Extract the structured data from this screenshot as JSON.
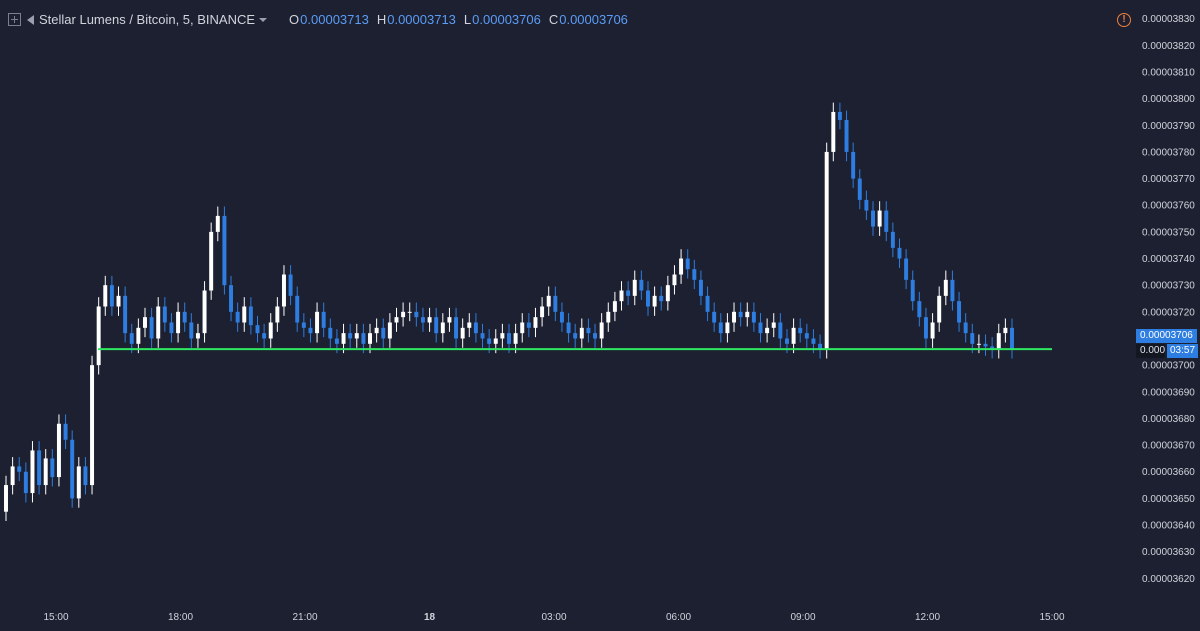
{
  "header": {
    "symbol_title": "Stellar Lumens / Bitcoin, 5, BINANCE",
    "ohlc": [
      {
        "key": "O",
        "value": "0.00003713"
      },
      {
        "key": "H",
        "value": "0.00003713"
      },
      {
        "key": "L",
        "value": "0.00003706"
      },
      {
        "key": "C",
        "value": "0.00003706"
      }
    ],
    "icons": [
      "chart-properties-icon",
      "flag-icon",
      "dropdown-caret-icon",
      "alert-icon"
    ]
  },
  "price_axis": {
    "last_price_label": "0.00003706",
    "countdown_prefix": "0.000",
    "countdown": "03:57"
  },
  "colors": {
    "background": "#1c2030",
    "up_candle": "#ffffff",
    "down_candle": "#2e7de0",
    "support_line": "#2ee860",
    "axis_text": "#d1d4dc",
    "alert": "#f0803c"
  },
  "chart_data": {
    "type": "candlestick",
    "title": "Stellar Lumens / Bitcoin, 5, BINANCE",
    "interval": "5",
    "x_ticks": [
      "15:00",
      "18:00",
      "21:00",
      "18",
      "03:00",
      "06:00",
      "09:00",
      "12:00",
      "15:00"
    ],
    "y_ticks": [
      "0.00003620",
      "0.00003630",
      "0.00003640",
      "0.00003650",
      "0.00003660",
      "0.00003670",
      "0.00003680",
      "0.00003690",
      "0.00003700",
      "0.00003710",
      "0.00003720",
      "0.00003730",
      "0.00003740",
      "0.00003750",
      "0.00003760",
      "0.00003770",
      "0.00003780",
      "0.00003790",
      "0.00003800",
      "0.00003810",
      "0.00003820",
      "0.00003830"
    ],
    "ylim": [
      3.61e-05,
      3.834e-05
    ],
    "horizontal_line": {
      "price": 3.706e-05,
      "color": "#2ee860"
    },
    "last_price": 3.706e-05,
    "closes": [
      3.655e-05,
      3.662e-05,
      3.66e-05,
      3.652e-05,
      3.668e-05,
      3.655e-05,
      3.665e-05,
      3.658e-05,
      3.678e-05,
      3.672e-05,
      3.65e-05,
      3.662e-05,
      3.655e-05,
      3.7e-05,
      3.722e-05,
      3.73e-05,
      3.722e-05,
      3.726e-05,
      3.712e-05,
      3.708e-05,
      3.714e-05,
      3.718e-05,
      3.71e-05,
      3.722e-05,
      3.716e-05,
      3.712e-05,
      3.72e-05,
      3.716e-05,
      3.71e-05,
      3.712e-05,
      3.728e-05,
      3.75e-05,
      3.756e-05,
      3.73e-05,
      3.72e-05,
      3.716e-05,
      3.722e-05,
      3.715e-05,
      3.712e-05,
      3.71e-05,
      3.716e-05,
      3.722e-05,
      3.734e-05,
      3.726e-05,
      3.716e-05,
      3.714e-05,
      3.712e-05,
      3.72e-05,
      3.714e-05,
      3.71e-05,
      3.708e-05,
      3.712e-05,
      3.71e-05,
      3.712e-05,
      3.708e-05,
      3.712e-05,
      3.714e-05,
      3.71e-05,
      3.716e-05,
      3.718e-05,
      3.72e-05,
      3.72e-05,
      3.718e-05,
      3.716e-05,
      3.718e-05,
      3.712e-05,
      3.716e-05,
      3.718e-05,
      3.71e-05,
      3.714e-05,
      3.716e-05,
      3.712e-05,
      3.71e-05,
      3.708e-05,
      3.71e-05,
      3.712e-05,
      3.708e-05,
      3.712e-05,
      3.716e-05,
      3.714e-05,
      3.718e-05,
      3.722e-05,
      3.726e-05,
      3.72e-05,
      3.716e-05,
      3.712e-05,
      3.71e-05,
      3.714e-05,
      3.712e-05,
      3.71e-05,
      3.716e-05,
      3.72e-05,
      3.724e-05,
      3.728e-05,
      3.726e-05,
      3.732e-05,
      3.728e-05,
      3.722e-05,
      3.726e-05,
      3.724e-05,
      3.73e-05,
      3.734e-05,
      3.74e-05,
      3.736e-05,
      3.732e-05,
      3.726e-05,
      3.72e-05,
      3.716e-05,
      3.712e-05,
      3.716e-05,
      3.72e-05,
      3.718e-05,
      3.72e-05,
      3.716e-05,
      3.712e-05,
      3.714e-05,
      3.716e-05,
      3.71e-05,
      3.708e-05,
      3.714e-05,
      3.712e-05,
      3.71e-05,
      3.708e-05,
      3.706e-05,
      3.78e-05,
      3.795e-05,
      3.792e-05,
      3.78e-05,
      3.77e-05,
      3.762e-05,
      3.758e-05,
      3.752e-05,
      3.758e-05,
      3.75e-05,
      3.744e-05,
      3.74e-05,
      3.732e-05,
      3.724e-05,
      3.718e-05,
      3.71e-05,
      3.716e-05,
      3.726e-05,
      3.732e-05,
      3.724e-05,
      3.716e-05,
      3.712e-05,
      3.708e-05,
      3.708e-05,
      3.707e-05,
      3.706e-05,
      3.712e-05,
      3.714e-05,
      3.706e-05
    ]
  }
}
